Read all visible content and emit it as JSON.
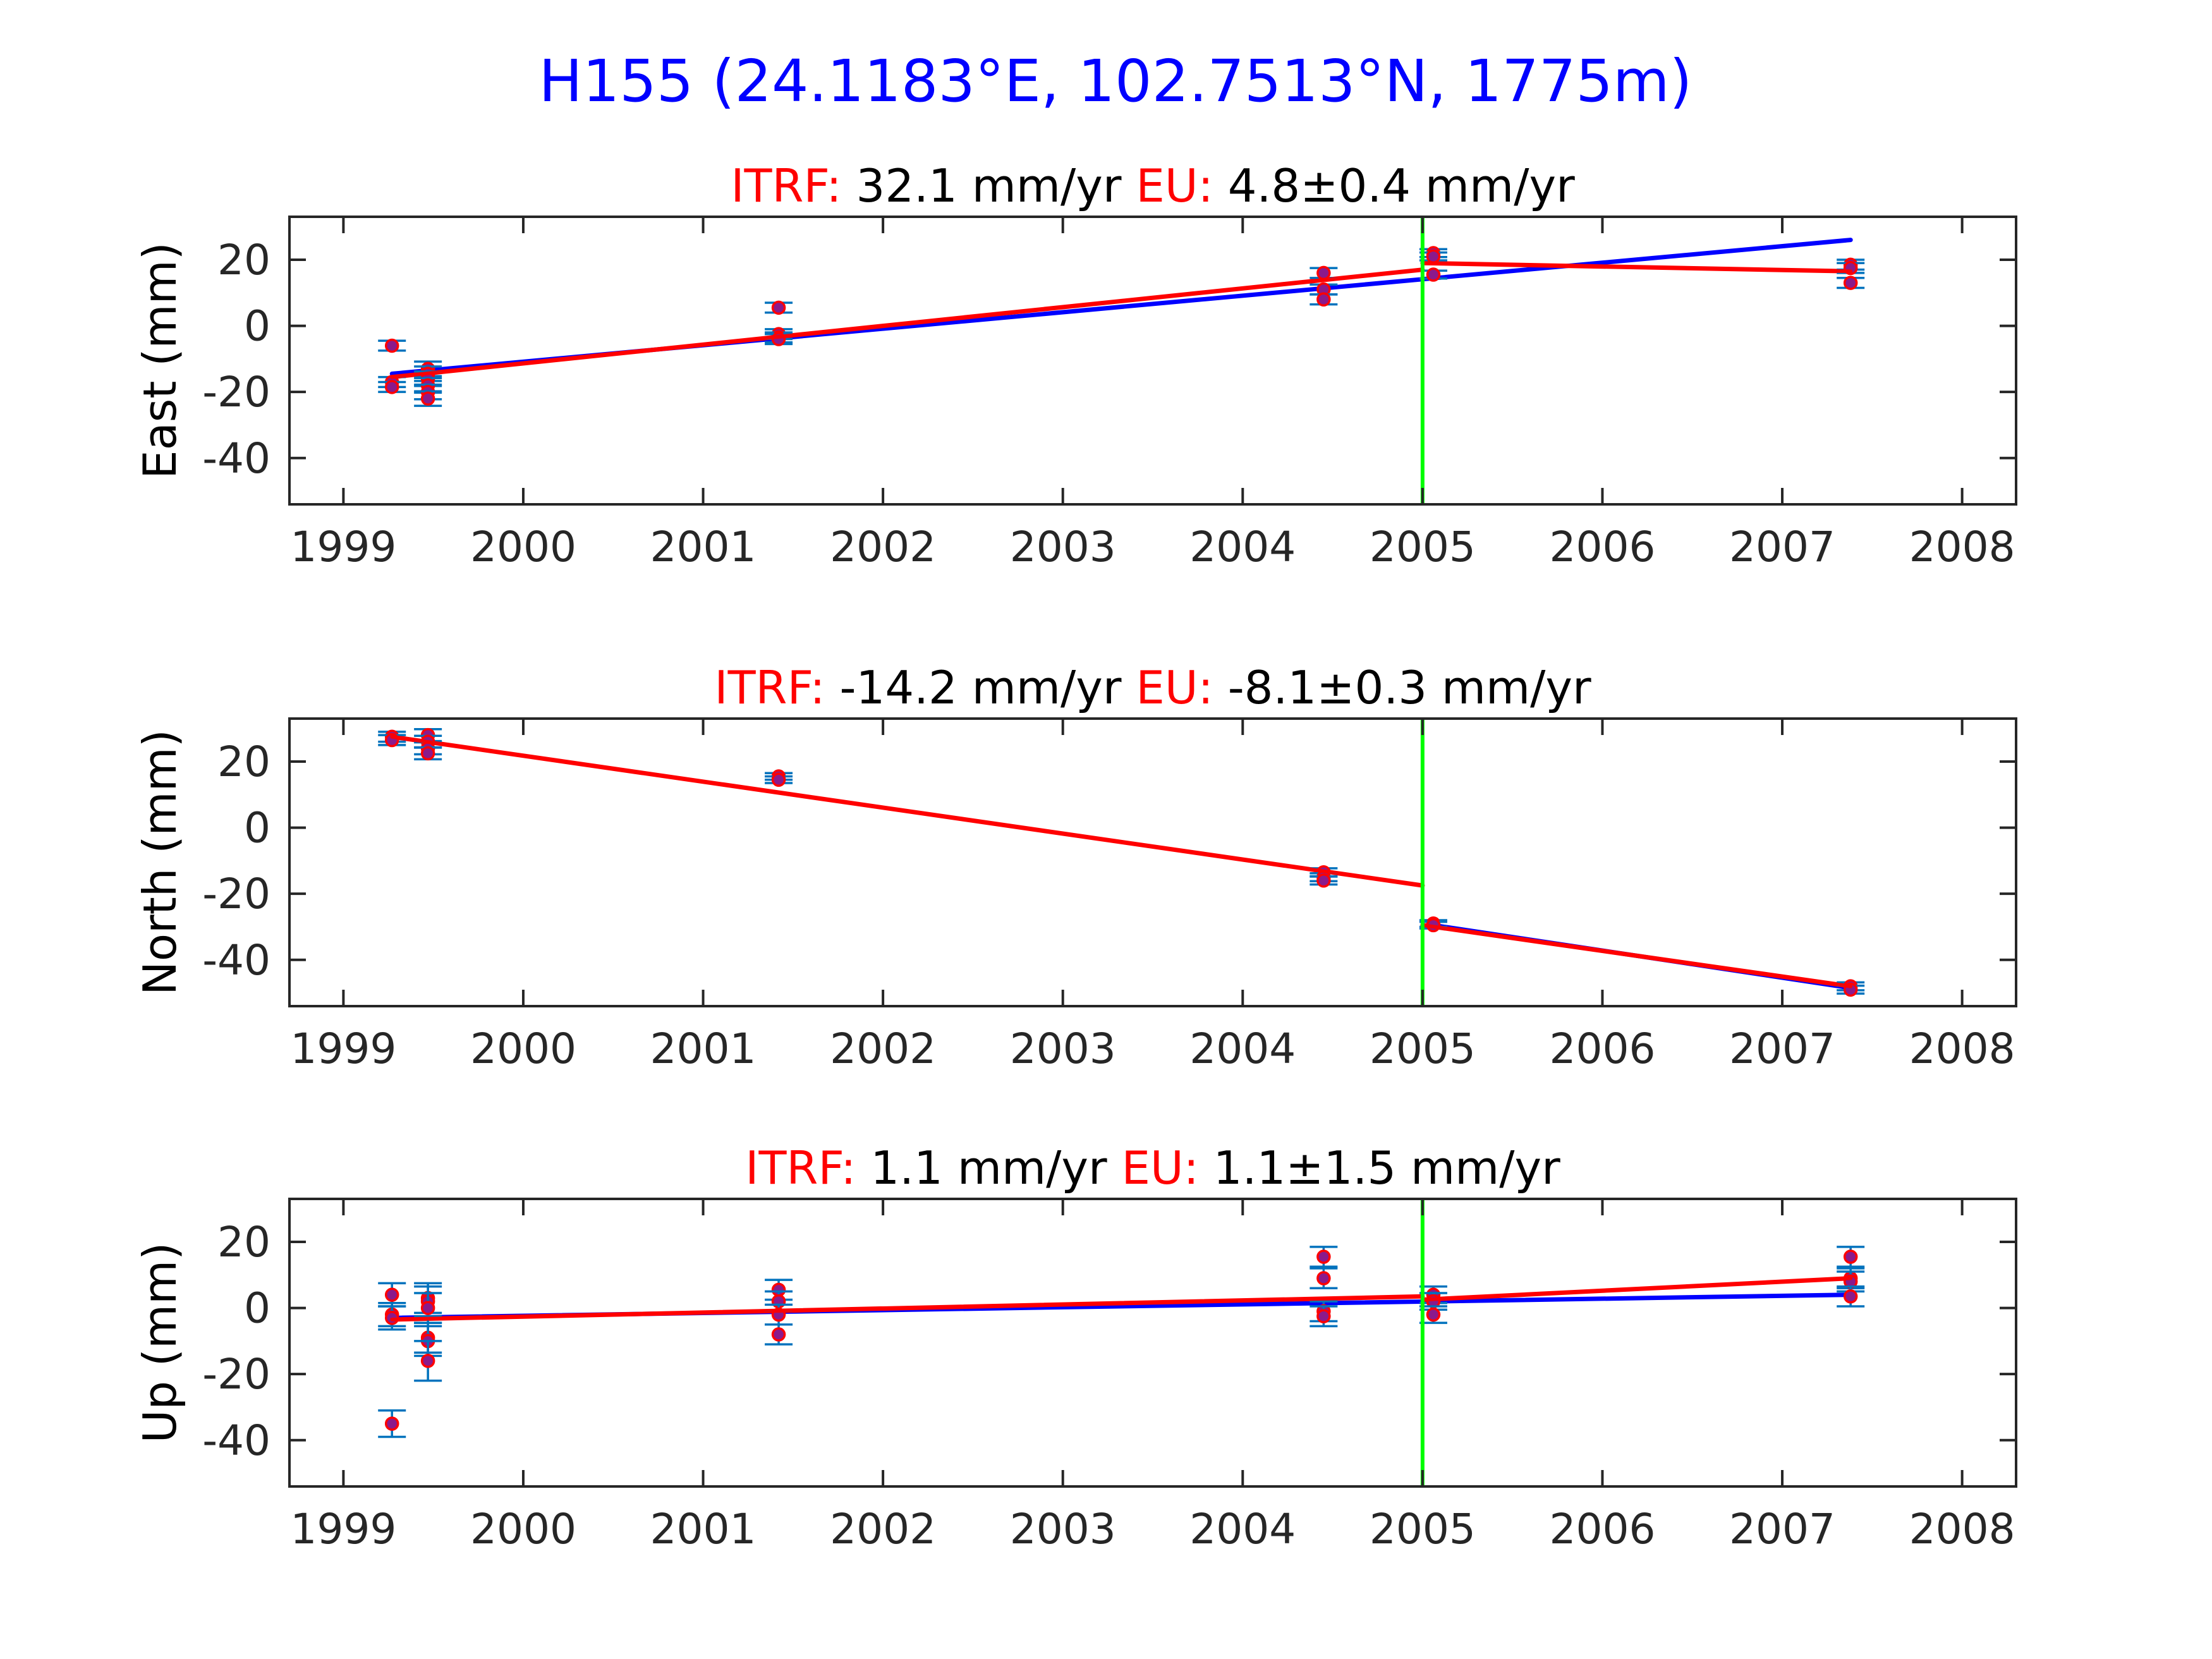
{
  "title": "H155 (24.1183°E, 102.7513°N, 1775m)",
  "colors": {
    "title": "#0000ff",
    "label_red": "#ff0000",
    "text": "#000000",
    "tick_text": "#262626",
    "axes": "#262626",
    "itrf_line": "#0000ff",
    "eu_line": "#ff0000",
    "marker_face": "#8b1a8b",
    "marker_edge": "#ff0000",
    "error_bar": "#0072bd",
    "break_line": "#00ff00"
  },
  "chart_data": [
    {
      "type": "scatter",
      "component": "east",
      "ylabel": "East (mm)",
      "xlim": [
        1998.7,
        2008.3
      ],
      "ylim": [
        -54,
        33
      ],
      "xticks": [
        1999,
        2000,
        2001,
        2002,
        2003,
        2004,
        2005,
        2006,
        2007,
        2008
      ],
      "yticks": [
        20,
        0,
        -20,
        -40
      ],
      "grid": false,
      "rate_labels": {
        "itrf_label": "ITRF:",
        "itrf_value": "32.1 mm/yr",
        "eu_label": "EU:",
        "eu_value": "4.8±0.4 mm/yr"
      },
      "break_epoch": 2005.0,
      "points": [
        {
          "x": 1999.27,
          "y": -6,
          "err": 1.5
        },
        {
          "x": 1999.27,
          "y": -17,
          "err": 1.5
        },
        {
          "x": 1999.27,
          "y": -18.5,
          "err": 1.5
        },
        {
          "x": 1999.47,
          "y": -13,
          "err": 2.2
        },
        {
          "x": 1999.47,
          "y": -14.5,
          "err": 2.2
        },
        {
          "x": 1999.47,
          "y": -16,
          "err": 2.2
        },
        {
          "x": 1999.47,
          "y": -18,
          "err": 2.2
        },
        {
          "x": 1999.47,
          "y": -20,
          "err": 2.2
        },
        {
          "x": 1999.47,
          "y": -22,
          "err": 2.2
        },
        {
          "x": 2001.42,
          "y": 5.5,
          "err": 1.5
        },
        {
          "x": 2001.42,
          "y": -2.5,
          "err": 1.5
        },
        {
          "x": 2001.42,
          "y": -3.5,
          "err": 1.5
        },
        {
          "x": 2001.42,
          "y": -4,
          "err": 1.5
        },
        {
          "x": 2004.45,
          "y": 16,
          "err": 1.5
        },
        {
          "x": 2004.45,
          "y": 11,
          "err": 1.5
        },
        {
          "x": 2004.45,
          "y": 8,
          "err": 1.5
        },
        {
          "x": 2005.06,
          "y": 22,
          "err": 1.2
        },
        {
          "x": 2005.06,
          "y": 21,
          "err": 1.2
        },
        {
          "x": 2005.06,
          "y": 15.5,
          "err": 1.2
        },
        {
          "x": 2007.38,
          "y": 18.5,
          "err": 1.5
        },
        {
          "x": 2007.38,
          "y": 17.5,
          "err": 1.5
        },
        {
          "x": 2007.38,
          "y": 13,
          "err": 1.5
        }
      ],
      "series": [
        {
          "role": "itrf",
          "segments": [
            [
              [
                1999.27,
                -14.5
              ],
              [
                2007.38,
                26
              ]
            ]
          ]
        },
        {
          "role": "eu",
          "segments": [
            [
              [
                1999.27,
                -15.5
              ],
              [
                2005.0,
                17
              ]
            ],
            [
              [
                2005.0,
                19
              ],
              [
                2007.38,
                16.5
              ]
            ]
          ]
        }
      ]
    },
    {
      "type": "scatter",
      "component": "north",
      "ylabel": "North (mm)",
      "xlim": [
        1998.7,
        2008.3
      ],
      "ylim": [
        -54,
        33
      ],
      "xticks": [
        1999,
        2000,
        2001,
        2002,
        2003,
        2004,
        2005,
        2006,
        2007,
        2008
      ],
      "yticks": [
        20,
        0,
        -20,
        -40
      ],
      "grid": false,
      "rate_labels": {
        "itrf_label": "ITRF:",
        "itrf_value": "-14.2 mm/yr",
        "eu_label": "EU:",
        "eu_value": "-8.1±0.3 mm/yr"
      },
      "break_epoch": 2005.0,
      "points": [
        {
          "x": 1999.27,
          "y": 27.5,
          "err": 1.5
        },
        {
          "x": 1999.27,
          "y": 26.5,
          "err": 1.5
        },
        {
          "x": 1999.47,
          "y": 28,
          "err": 1.8
        },
        {
          "x": 1999.47,
          "y": 26,
          "err": 1.8
        },
        {
          "x": 1999.47,
          "y": 24,
          "err": 1.8
        },
        {
          "x": 1999.47,
          "y": 22.5,
          "err": 1.8
        },
        {
          "x": 2001.42,
          "y": 15.5,
          "err": 1.0
        },
        {
          "x": 2001.42,
          "y": 14.5,
          "err": 1.0
        },
        {
          "x": 2004.45,
          "y": -13.5,
          "err": 1.2
        },
        {
          "x": 2004.45,
          "y": -15,
          "err": 1.2
        },
        {
          "x": 2004.45,
          "y": -16,
          "err": 1.2
        },
        {
          "x": 2005.06,
          "y": -29,
          "err": 1.0
        },
        {
          "x": 2005.06,
          "y": -29.5,
          "err": 1.0
        },
        {
          "x": 2007.38,
          "y": -48,
          "err": 1.2
        },
        {
          "x": 2007.38,
          "y": -49,
          "err": 1.2
        }
      ],
      "series": [
        {
          "role": "itrf",
          "segments": [
            [
              [
                2005.06,
                -29.5
              ],
              [
                2007.38,
                -48.5
              ]
            ]
          ]
        },
        {
          "role": "eu",
          "segments": [
            [
              [
                1999.27,
                27.5
              ],
              [
                2005.0,
                -17.5
              ]
            ],
            [
              [
                2005.0,
                -29.5
              ],
              [
                2007.38,
                -48
              ]
            ]
          ]
        }
      ]
    },
    {
      "type": "scatter",
      "component": "up",
      "ylabel": "Up (mm)",
      "xlim": [
        1998.7,
        2008.3
      ],
      "ylim": [
        -54,
        33
      ],
      "xticks": [
        1999,
        2000,
        2001,
        2002,
        2003,
        2004,
        2005,
        2006,
        2007,
        2008
      ],
      "yticks": [
        20,
        0,
        -20,
        -40
      ],
      "grid": false,
      "rate_labels": {
        "itrf_label": "ITRF:",
        "itrf_value": "1.1 mm/yr",
        "eu_label": "EU:",
        "eu_value": "1.1±1.5 mm/yr"
      },
      "break_epoch": 2005.0,
      "points": [
        {
          "x": 1999.27,
          "y": 4,
          "err": 3.5
        },
        {
          "x": 1999.27,
          "y": -2,
          "err": 3.5
        },
        {
          "x": 1999.27,
          "y": -3,
          "err": 3.5
        },
        {
          "x": 1999.27,
          "y": -35,
          "err": 4.0
        },
        {
          "x": 1999.47,
          "y": 3,
          "err": 4.5
        },
        {
          "x": 1999.47,
          "y": 2,
          "err": 4.5
        },
        {
          "x": 1999.47,
          "y": 0,
          "err": 4.5
        },
        {
          "x": 1999.47,
          "y": -9,
          "err": 4.5
        },
        {
          "x": 1999.47,
          "y": -10,
          "err": 4.5
        },
        {
          "x": 1999.47,
          "y": -16,
          "err": 6.0
        },
        {
          "x": 2001.42,
          "y": 5.5,
          "err": 3.0
        },
        {
          "x": 2001.42,
          "y": 2,
          "err": 3.0
        },
        {
          "x": 2001.42,
          "y": -2,
          "err": 3.0
        },
        {
          "x": 2001.42,
          "y": -8,
          "err": 3.0
        },
        {
          "x": 2004.45,
          "y": 15.5,
          "err": 3.0
        },
        {
          "x": 2004.45,
          "y": 9,
          "err": 3.0
        },
        {
          "x": 2004.45,
          "y": -1,
          "err": 3.0
        },
        {
          "x": 2004.45,
          "y": -2.5,
          "err": 3.0
        },
        {
          "x": 2005.06,
          "y": 4,
          "err": 2.5
        },
        {
          "x": 2005.06,
          "y": 2,
          "err": 2.5
        },
        {
          "x": 2005.06,
          "y": -2,
          "err": 2.5
        },
        {
          "x": 2007.38,
          "y": 15.5,
          "err": 3.0
        },
        {
          "x": 2007.38,
          "y": 9,
          "err": 3.0
        },
        {
          "x": 2007.38,
          "y": 8,
          "err": 3.0
        },
        {
          "x": 2007.38,
          "y": 3.5,
          "err": 3.0
        }
      ],
      "series": [
        {
          "role": "itrf",
          "segments": [
            [
              [
                1999.27,
                -3
              ],
              [
                2007.38,
                4
              ]
            ]
          ]
        },
        {
          "role": "eu",
          "segments": [
            [
              [
                1999.27,
                -3.5
              ],
              [
                2005.0,
                3.5
              ]
            ],
            [
              [
                2005.0,
                2.5
              ],
              [
                2007.38,
                9
              ]
            ]
          ]
        }
      ]
    }
  ]
}
